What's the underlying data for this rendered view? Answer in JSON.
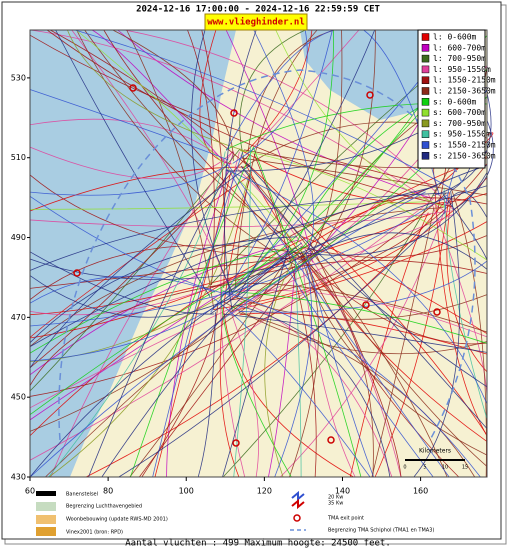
{
  "header": {
    "period": "2024-12-16 17:00:00 - 2024-12-16 22:59:59 CET",
    "site": "www.vlieghinder.nl"
  },
  "map": {
    "xlim": [
      60,
      177
    ],
    "ylim": [
      430,
      542
    ],
    "x_ticks": [
      60,
      80,
      100,
      120,
      140,
      160
    ],
    "y_ticks": [
      530,
      510,
      490,
      470,
      450,
      430
    ],
    "scale_label": "Kilometers",
    "scale_ticks": [
      "0",
      "5",
      "10",
      "15"
    ]
  },
  "legend": [
    {
      "label": "l: 0-600m",
      "color": "#e00000"
    },
    {
      "label": "l: 600-700m",
      "color": "#c000c0"
    },
    {
      "label": "l: 700-950m",
      "color": "#3c6b1e"
    },
    {
      "label": "l: 950-1550m",
      "color": "#e0409a"
    },
    {
      "label": "l: 1550-2150m",
      "color": "#a01010"
    },
    {
      "label": "l: 2150-3650m",
      "color": "#8b2a1a"
    },
    {
      "label": "s: 0-600m",
      "color": "#10d010"
    },
    {
      "label": "s: 600-700m",
      "color": "#90e030"
    },
    {
      "label": "s: 700-950m",
      "color": "#8a9a20"
    },
    {
      "label": "s: 950-1550m",
      "color": "#40c0a0"
    },
    {
      "label": "s: 1550-2150m",
      "color": "#3050d0"
    },
    {
      "label": "s: 2150-3650m",
      "color": "#202a80"
    }
  ],
  "key": [
    "Banenstelsel",
    "Begrenzing Luchthavengebied",
    "Woonbebouwing (update RWS-MD 2001)",
    "Vinex2001 (bron: RPD)",
    "20 Kw",
    "35 Kw",
    "TMA exit point",
    "Begrenzing TMA Schiphol  (TMA1 en TMA3)"
  ],
  "footer": "Aantal vluchten : 499 Maximum hoogte: 24500 feet."
}
